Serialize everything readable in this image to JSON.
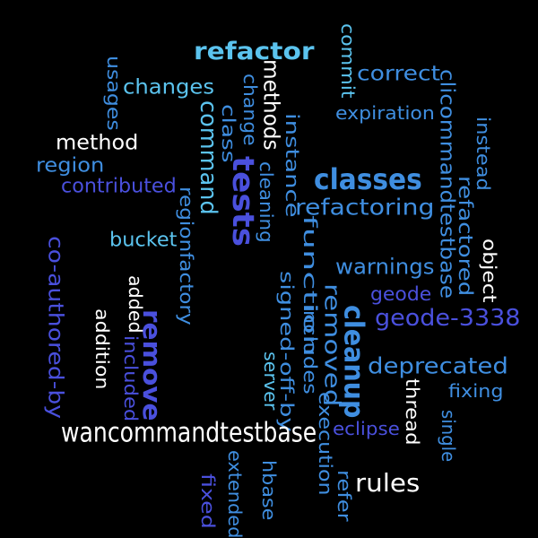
{
  "colors": {
    "background": "#000000",
    "white": "#ffffff",
    "sky": "#5bc3ee",
    "blue": "#3f8ee0",
    "indigo": "#4a50dd"
  },
  "words": [
    {
      "text": "refactor",
      "color": "#5bc3ee",
      "weight": "bold"
    },
    {
      "text": "commit",
      "color": "#5bc3ee",
      "weight": "normal"
    },
    {
      "text": "correct",
      "color": "#3f8ee0",
      "weight": "normal"
    },
    {
      "text": "usages",
      "color": "#3f8ee0",
      "weight": "normal"
    },
    {
      "text": "changes",
      "color": "#5bc3ee",
      "weight": "normal"
    },
    {
      "text": "methods",
      "color": "#ffffff",
      "weight": "normal"
    },
    {
      "text": "change",
      "color": "#3f8ee0",
      "weight": "normal"
    },
    {
      "text": "clicommandtestbase",
      "color": "#3f8ee0",
      "weight": "normal"
    },
    {
      "text": "expiration",
      "color": "#3f8ee0",
      "weight": "normal"
    },
    {
      "text": "command",
      "color": "#5bc3ee",
      "weight": "normal"
    },
    {
      "text": "class",
      "color": "#3f8ee0",
      "weight": "normal"
    },
    {
      "text": "instance",
      "color": "#3f8ee0",
      "weight": "normal"
    },
    {
      "text": "method",
      "color": "#ffffff",
      "weight": "normal"
    },
    {
      "text": "instead",
      "color": "#3f8ee0",
      "weight": "normal"
    },
    {
      "text": "region",
      "color": "#3f8ee0",
      "weight": "normal"
    },
    {
      "text": "tests",
      "color": "#4a50dd",
      "weight": "bold"
    },
    {
      "text": "cleaning",
      "color": "#3f8ee0",
      "weight": "normal"
    },
    {
      "text": "classes",
      "color": "#3f8ee0",
      "weight": "bold"
    },
    {
      "text": "refactored",
      "color": "#3f8ee0",
      "weight": "normal"
    },
    {
      "text": "contributed",
      "color": "#4a50dd",
      "weight": "normal"
    },
    {
      "text": "regionfactory",
      "color": "#3f8ee0",
      "weight": "normal"
    },
    {
      "text": "refactoring",
      "color": "#3f8ee0",
      "weight": "normal"
    },
    {
      "text": "bucket",
      "color": "#5bc3ee",
      "weight": "normal"
    },
    {
      "text": "co-authored-by",
      "color": "#4a50dd",
      "weight": "normal"
    },
    {
      "text": "function",
      "color": "#3f8ee0",
      "weight": "normal"
    },
    {
      "text": "object",
      "color": "#ffffff",
      "weight": "normal"
    },
    {
      "text": "warnings",
      "color": "#3f8ee0",
      "weight": "normal"
    },
    {
      "text": "added",
      "color": "#ffffff",
      "weight": "normal"
    },
    {
      "text": "signed-off-by",
      "color": "#3f8ee0",
      "weight": "normal"
    },
    {
      "text": "removed",
      "color": "#3f8ee0",
      "weight": "normal"
    },
    {
      "text": "geode",
      "color": "#4a50dd",
      "weight": "normal"
    },
    {
      "text": "addition",
      "color": "#ffffff",
      "weight": "normal"
    },
    {
      "text": "remove",
      "color": "#4a50dd",
      "weight": "bold"
    },
    {
      "text": "includes",
      "color": "#3f8ee0",
      "weight": "normal"
    },
    {
      "text": "cleanup",
      "color": "#3f8ee0",
      "weight": "bold"
    },
    {
      "text": "geode-3338",
      "color": "#4a50dd",
      "weight": "normal"
    },
    {
      "text": "included",
      "color": "#4a50dd",
      "weight": "normal"
    },
    {
      "text": "deprecated",
      "color": "#3f8ee0",
      "weight": "normal"
    },
    {
      "text": "server",
      "color": "#5bc3ee",
      "weight": "normal"
    },
    {
      "text": "thread",
      "color": "#ffffff",
      "weight": "normal"
    },
    {
      "text": "fixing",
      "color": "#3f8ee0",
      "weight": "normal"
    },
    {
      "text": "wancommandtestbase",
      "color": "#ffffff",
      "weight": "normal"
    },
    {
      "text": "eclipse",
      "color": "#4a50dd",
      "weight": "normal"
    },
    {
      "text": "execution",
      "color": "#3f8ee0",
      "weight": "normal"
    },
    {
      "text": "single",
      "color": "#3f8ee0",
      "weight": "normal"
    },
    {
      "text": "rules",
      "color": "#ffffff",
      "weight": "normal"
    },
    {
      "text": "fixed",
      "color": "#4a50dd",
      "weight": "normal"
    },
    {
      "text": "extended",
      "color": "#3f8ee0",
      "weight": "normal"
    },
    {
      "text": "hbase",
      "color": "#3f8ee0",
      "weight": "normal"
    },
    {
      "text": "refer",
      "color": "#3f8ee0",
      "weight": "normal"
    }
  ]
}
